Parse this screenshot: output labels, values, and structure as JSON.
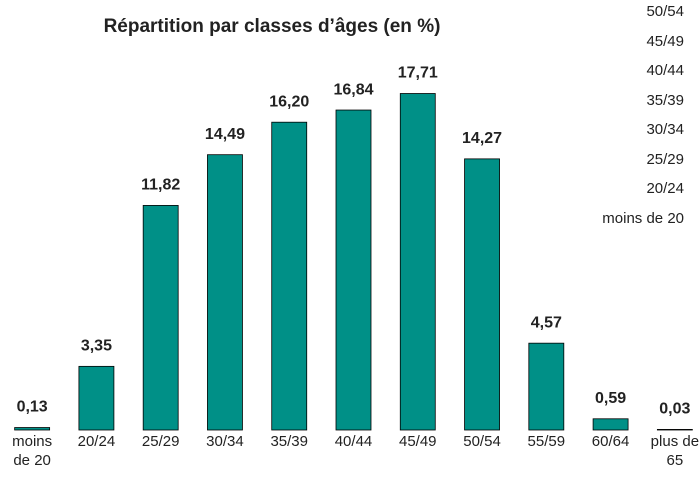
{
  "chart_data": {
    "type": "bar",
    "title": "Répartition par classes d’âges (en %)",
    "categories": [
      "moins de 20",
      "20/24",
      "25/29",
      "30/34",
      "35/39",
      "40/44",
      "45/49",
      "50/54",
      "55/59",
      "60/64",
      "plus de 65"
    ],
    "values": [
      0.13,
      3.35,
      11.82,
      14.49,
      16.2,
      16.84,
      17.71,
      14.27,
      4.57,
      0.59,
      0.03
    ],
    "value_labels": [
      "0,13",
      "3,35",
      "11,82",
      "14,49",
      "16,20",
      "16,84",
      "17,71",
      "14,27",
      "4,57",
      "0,59",
      "0,03"
    ],
    "color": "#009087",
    "ylim": [
      0,
      20
    ],
    "annotations": [
      "50/54",
      "45/49",
      "40/44",
      "35/39",
      "30/34",
      "25/29",
      "20/24",
      "moins de 20"
    ]
  }
}
